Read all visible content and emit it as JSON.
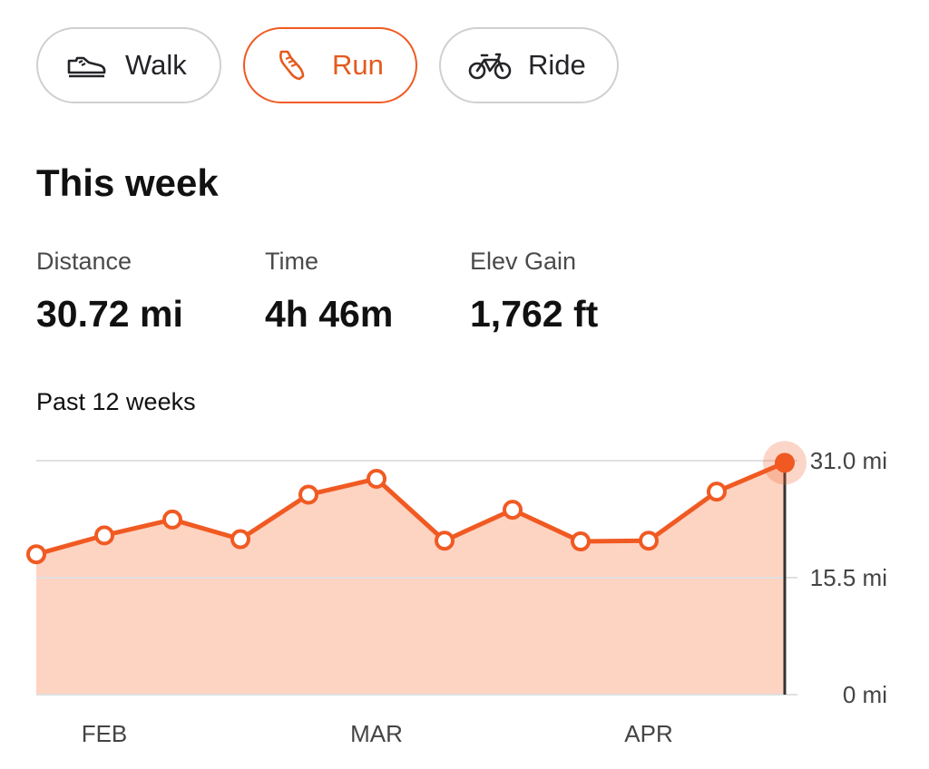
{
  "activity_tabs": [
    {
      "label": "Walk",
      "icon": "shoe-icon",
      "selected": false
    },
    {
      "label": "Run",
      "icon": "running-shoe-icon",
      "selected": true
    },
    {
      "label": "Ride",
      "icon": "bike-icon",
      "selected": false
    }
  ],
  "summary": {
    "heading": "This week",
    "stats": [
      {
        "label": "Distance",
        "value": "30.72 mi"
      },
      {
        "label": "Time",
        "value": "4h 46m"
      },
      {
        "label": "Elev Gain",
        "value": "1,762 ft"
      }
    ]
  },
  "chart_section": {
    "title": "Past 12 weeks"
  },
  "colors": {
    "accent": "#f05a22",
    "area_fill": "#fdd3c2",
    "gridline": "#e0e0e0",
    "marker_line": "#333333"
  },
  "chart_data": {
    "type": "area",
    "title": "",
    "xlabel": "",
    "ylabel": "",
    "x_tick_labels": [
      "FEB",
      "MAR",
      "APR"
    ],
    "y_tick_labels": [
      "31.0 mi",
      "15.5 mi",
      "0 mi"
    ],
    "y_ticks": [
      31.0,
      15.5,
      0
    ],
    "ylim": [
      0,
      31.0
    ],
    "grid": true,
    "x": [
      "week 1",
      "week 2",
      "week 3",
      "week 4",
      "week 5",
      "week 6",
      "week 7",
      "week 8",
      "week 9",
      "week 10",
      "week 11",
      "week 12"
    ],
    "values": [
      18.6,
      21.1,
      23.2,
      20.6,
      26.5,
      28.6,
      20.4,
      24.5,
      20.3,
      20.4,
      26.9,
      30.72
    ],
    "highlighted_index": 11
  }
}
